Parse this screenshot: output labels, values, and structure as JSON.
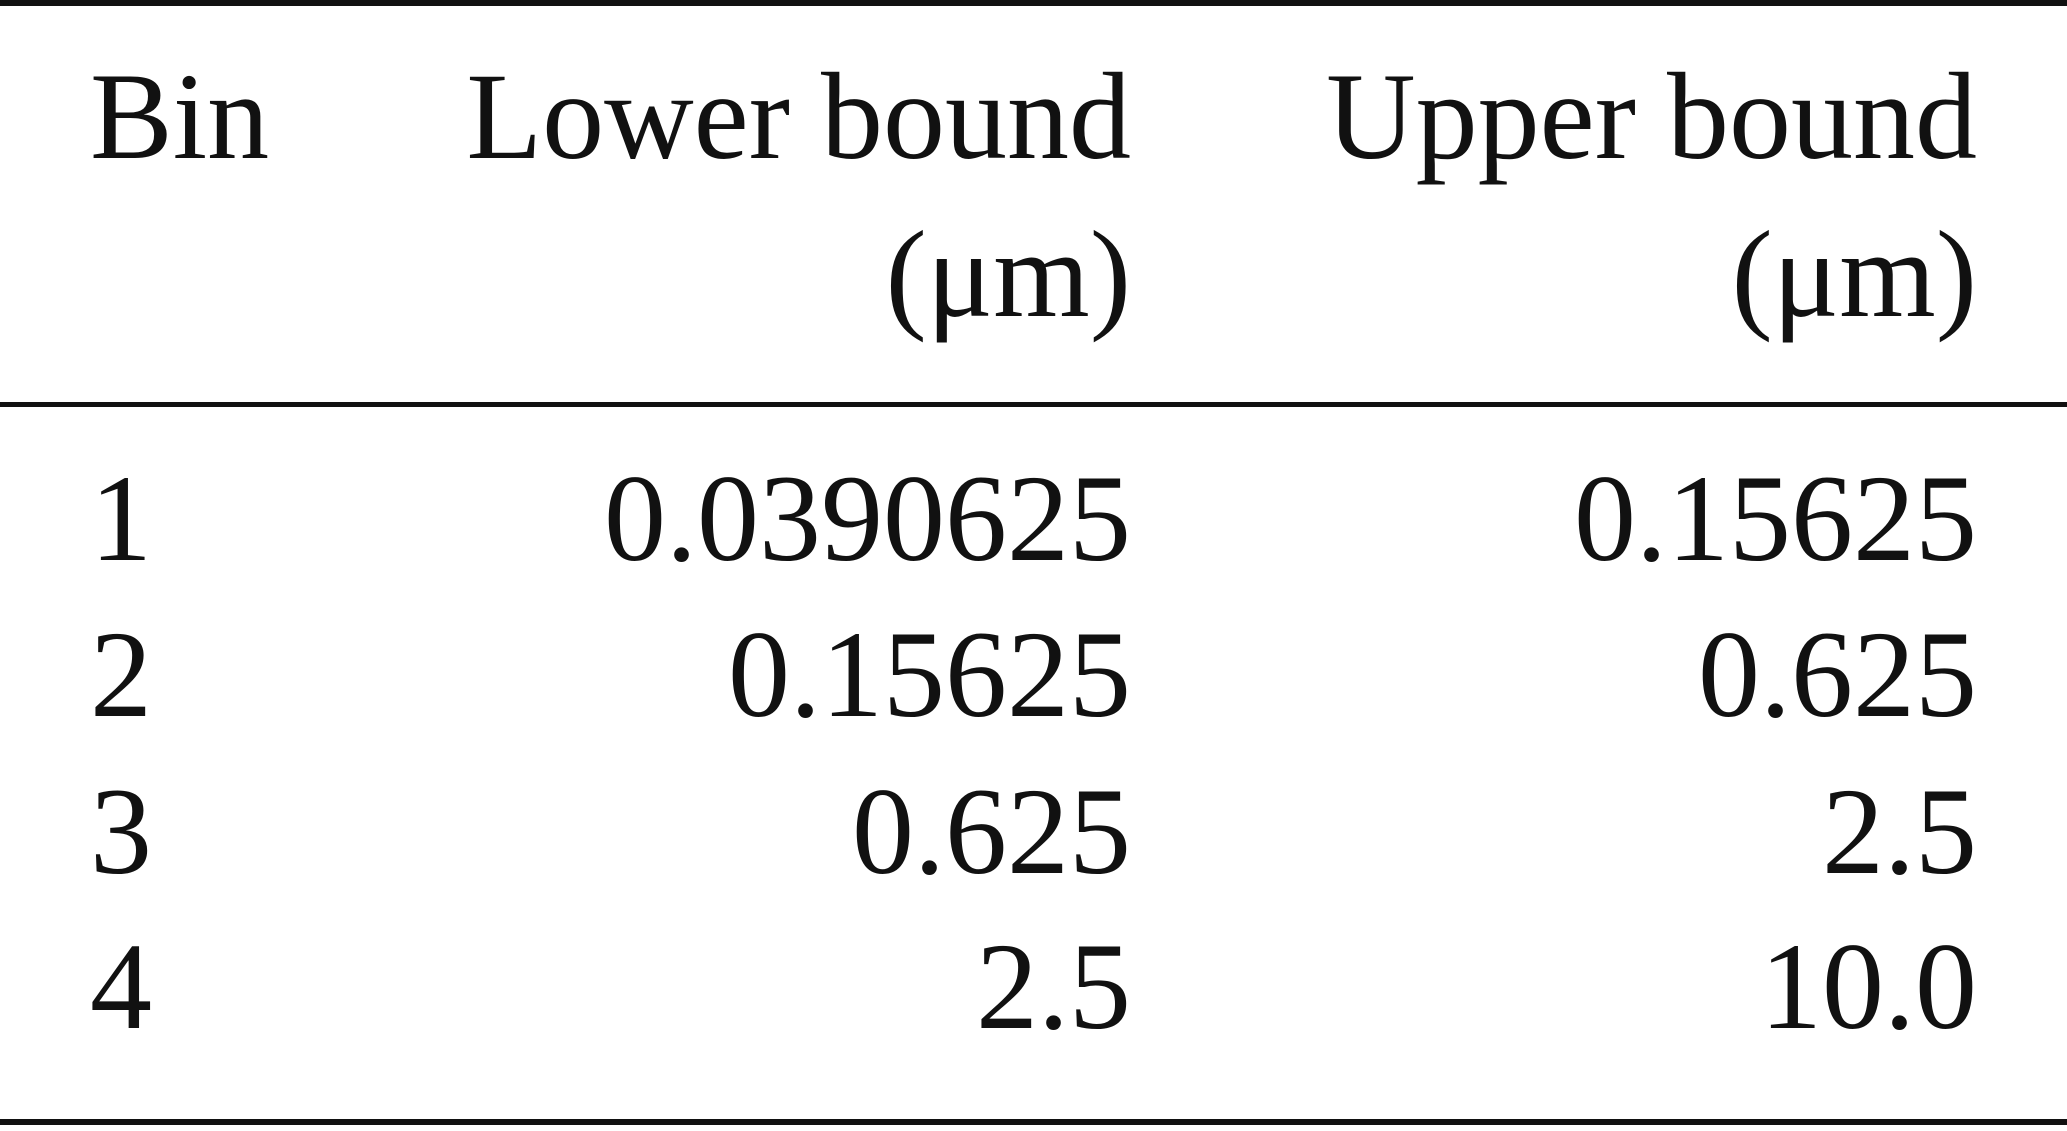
{
  "table": {
    "header": [
      [
        "Bin"
      ],
      [
        "Lower bound",
        "(μm)"
      ],
      [
        "Upper bound",
        "(μm)"
      ]
    ],
    "rows": [
      [
        "1",
        "0.0390625",
        "0.15625"
      ],
      [
        "2",
        "0.15625",
        "0.625"
      ],
      [
        "3",
        "0.625",
        "2.5"
      ],
      [
        "4",
        "2.5",
        "10.0"
      ]
    ]
  }
}
